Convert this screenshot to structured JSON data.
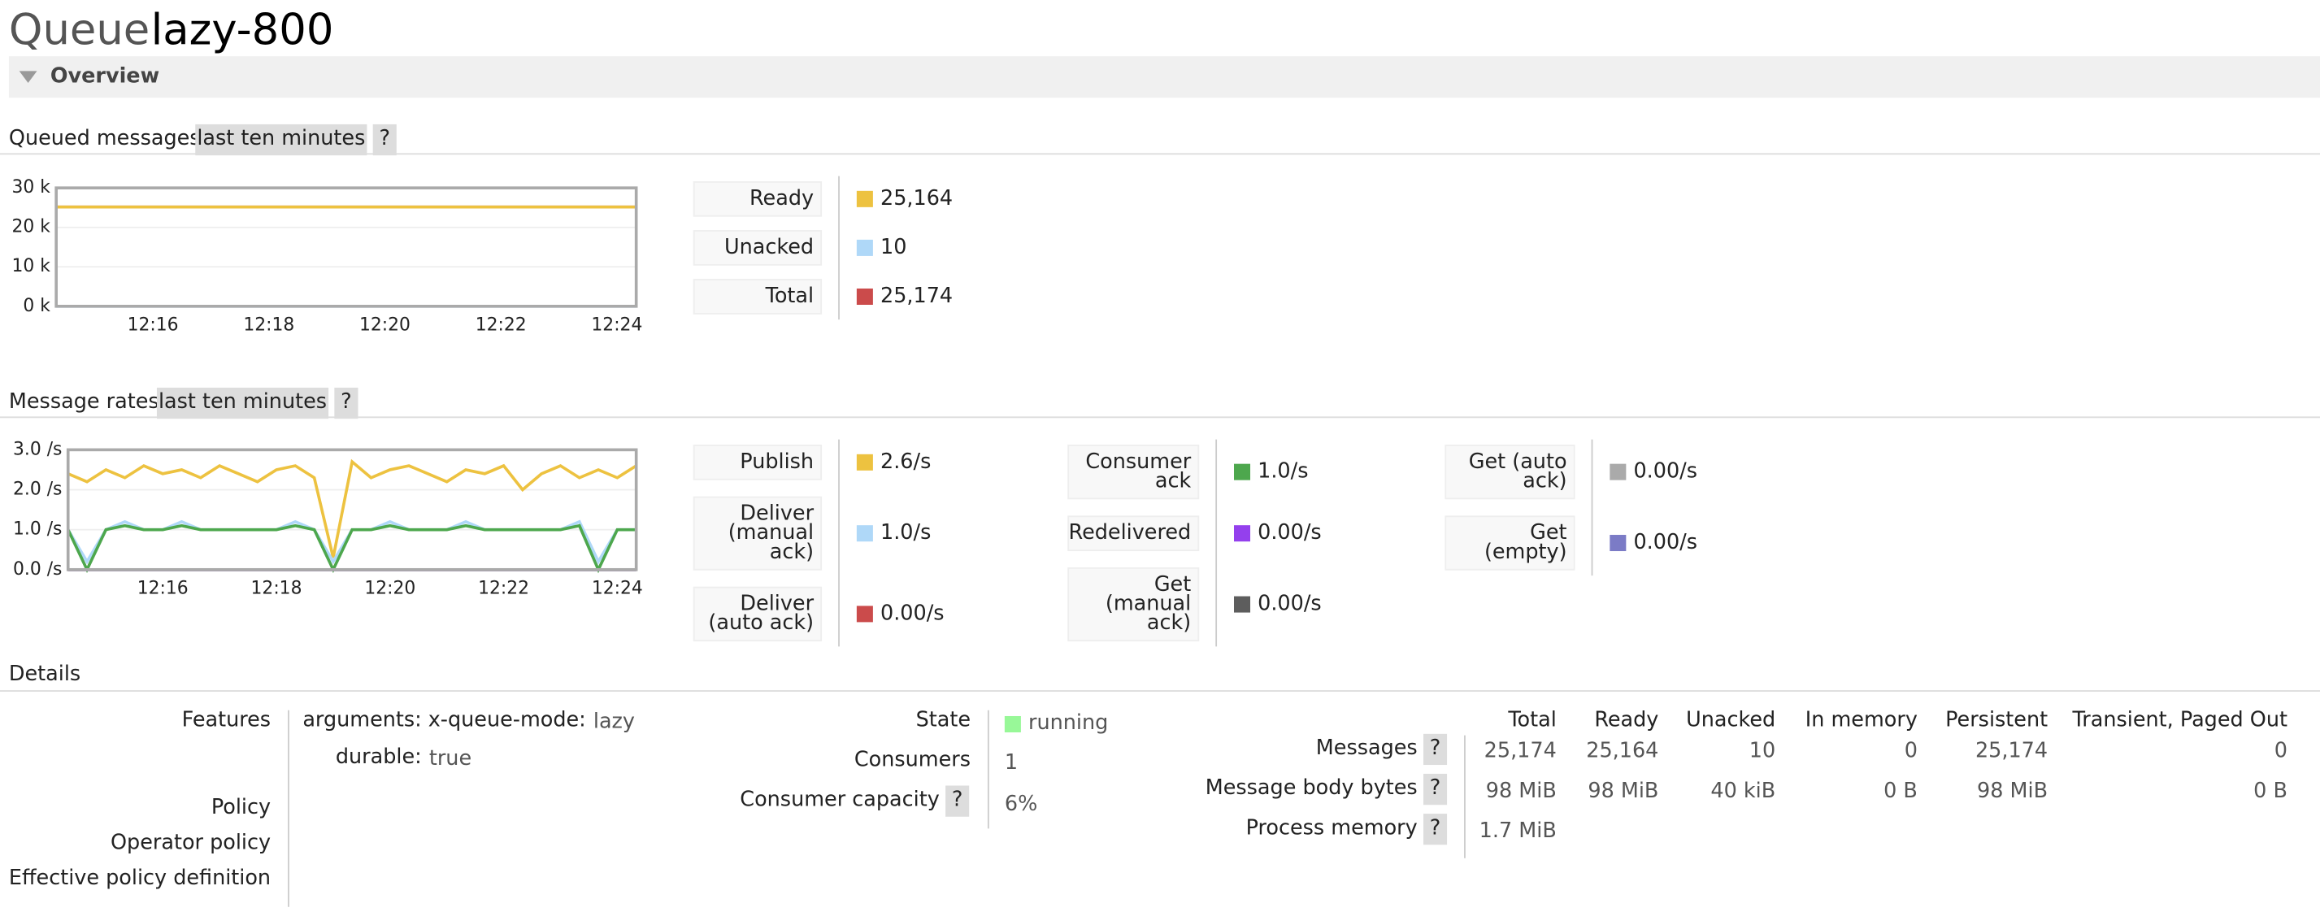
{
  "header": {
    "title_prefix": "Queue",
    "title_name": "lazy-800"
  },
  "overview": {
    "label": "Overview"
  },
  "queued_messages": {
    "label": "Queued messages",
    "range": "last ten minutes",
    "help": "?",
    "chart": {
      "type": "line",
      "x": [
        "12:14:20",
        "12:24:20"
      ],
      "xlim": [
        "12:14:20",
        "12:24:20"
      ],
      "xticks": [
        "12:16",
        "12:18",
        "12:20",
        "12:22",
        "12:24"
      ],
      "ylim": [
        0,
        30000
      ],
      "yticks": [
        {
          "value": 0,
          "label": "0 k"
        },
        {
          "value": 10000,
          "label": "10 k"
        },
        {
          "value": 20000,
          "label": "20 k"
        },
        {
          "value": 30000,
          "label": "30 k"
        }
      ]
    },
    "legend": [
      {
        "label": [
          "Ready"
        ],
        "color": "#edc240",
        "value": "25,164",
        "values": [
          25164,
          25164
        ]
      },
      {
        "label": [
          "Unacked"
        ],
        "color": "#afd8f8",
        "value": "10",
        "values": [
          10,
          10
        ]
      },
      {
        "label": [
          "Total"
        ],
        "color": "#cb4b4b",
        "value": "25,174",
        "values": [
          25174,
          25174
        ]
      }
    ]
  },
  "message_rates": {
    "label": "Message rates",
    "range": "last ten minutes",
    "help": "?",
    "chart": {
      "type": "line",
      "x": [
        "12:14:20",
        "12:14:40",
        "12:15:00",
        "12:15:20",
        "12:15:40",
        "12:16:00",
        "12:16:20",
        "12:16:40",
        "12:17:00",
        "12:17:20",
        "12:17:40",
        "12:18:00",
        "12:18:20",
        "12:18:40",
        "12:19:00",
        "12:19:20",
        "12:19:40",
        "12:20:00",
        "12:20:20",
        "12:20:40",
        "12:21:00",
        "12:21:20",
        "12:21:40",
        "12:22:00",
        "12:22:20",
        "12:22:40",
        "12:23:00",
        "12:23:20",
        "12:23:40",
        "12:24:00",
        "12:24:20"
      ],
      "xlim": [
        "12:14:20",
        "12:24:20"
      ],
      "xticks": [
        "12:16",
        "12:18",
        "12:20",
        "12:22",
        "12:24"
      ],
      "ylim": [
        0,
        3
      ],
      "yticks": [
        {
          "value": 0,
          "label": "0.0 /s"
        },
        {
          "value": 1,
          "label": "1.0 /s"
        },
        {
          "value": 2,
          "label": "2.0 /s"
        },
        {
          "value": 3,
          "label": "3.0 /s"
        }
      ]
    },
    "columns": [
      [
        {
          "label": [
            "Publish"
          ],
          "color": "#edc240",
          "value": "2.6/s",
          "values": [
            2.4,
            2.2,
            2.5,
            2.3,
            2.6,
            2.4,
            2.5,
            2.3,
            2.6,
            2.4,
            2.2,
            2.5,
            2.6,
            2.3,
            0.3,
            2.7,
            2.3,
            2.5,
            2.6,
            2.4,
            2.2,
            2.5,
            2.4,
            2.6,
            2.0,
            2.4,
            2.6,
            2.3,
            2.5,
            2.3,
            2.6
          ]
        },
        {
          "label": [
            "Deliver",
            "(manual",
            "ack)"
          ],
          "color": "#afd8f8",
          "value": "1.0/s",
          "values": [
            1,
            0.2,
            1,
            1.2,
            1,
            1,
            1.2,
            1,
            1,
            1,
            1,
            1,
            1.2,
            1,
            0.2,
            1,
            1,
            1.2,
            1,
            1,
            1,
            1.2,
            1,
            1,
            1,
            1,
            1,
            1.2,
            0.2,
            1,
            1
          ]
        },
        {
          "label": [
            "Deliver",
            "(auto ack)"
          ],
          "color": "#cb4b4b",
          "value": "0.00/s",
          "values": [
            0,
            0,
            0,
            0,
            0,
            0,
            0,
            0,
            0,
            0,
            0,
            0,
            0,
            0,
            0,
            0,
            0,
            0,
            0,
            0,
            0,
            0,
            0,
            0,
            0,
            0,
            0,
            0,
            0,
            0,
            0
          ]
        }
      ],
      [
        {
          "label": [
            "Consumer",
            "ack"
          ],
          "color": "#4da74d",
          "value": "1.0/s",
          "values": [
            1,
            0,
            1,
            1.1,
            1,
            1,
            1.1,
            1,
            1,
            1,
            1,
            1,
            1.1,
            1,
            0,
            1,
            1,
            1.1,
            1,
            1,
            1,
            1.1,
            1,
            1,
            1,
            1,
            1,
            1.1,
            0,
            1,
            1
          ]
        },
        {
          "label": [
            "Redelivered"
          ],
          "color": "#9440ed",
          "value": "0.00/s",
          "values": [
            0,
            0,
            0,
            0,
            0,
            0,
            0,
            0,
            0,
            0,
            0,
            0,
            0,
            0,
            0,
            0,
            0,
            0,
            0,
            0,
            0,
            0,
            0,
            0,
            0,
            0,
            0,
            0,
            0,
            0,
            0
          ]
        },
        {
          "label": [
            "Get",
            "(manual",
            "ack)"
          ],
          "color": "#5d5d5d",
          "value": "0.00/s",
          "values": [
            0,
            0,
            0,
            0,
            0,
            0,
            0,
            0,
            0,
            0,
            0,
            0,
            0,
            0,
            0,
            0,
            0,
            0,
            0,
            0,
            0,
            0,
            0,
            0,
            0,
            0,
            0,
            0,
            0,
            0,
            0
          ]
        }
      ],
      [
        {
          "label": [
            "Get (auto",
            "ack)"
          ],
          "color": "#aaaaaa",
          "value": "0.00/s",
          "values": [
            0,
            0,
            0,
            0,
            0,
            0,
            0,
            0,
            0,
            0,
            0,
            0,
            0,
            0,
            0,
            0,
            0,
            0,
            0,
            0,
            0,
            0,
            0,
            0,
            0,
            0,
            0,
            0,
            0,
            0,
            0
          ]
        },
        {
          "label": [
            "Get",
            "(empty)"
          ],
          "color": "#7b7bc6",
          "value": "0.00/s",
          "values": [
            0,
            0,
            0,
            0,
            0,
            0,
            0,
            0,
            0,
            0,
            0,
            0,
            0,
            0,
            0,
            0,
            0,
            0,
            0,
            0,
            0,
            0,
            0,
            0,
            0,
            0,
            0,
            0,
            0,
            0,
            0
          ]
        }
      ]
    ]
  },
  "details": {
    "label": "Details",
    "features": {
      "label": "Features",
      "arguments_label": "arguments:",
      "argument_key": "x-queue-mode:",
      "argument_value": "lazy",
      "durable_label": "durable:",
      "durable_value": "true"
    },
    "policy": "Policy",
    "operator_policy": "Operator policy",
    "effective_policy": "Effective policy definition",
    "state": {
      "label": "State",
      "value": "running",
      "color": "#98f898"
    },
    "consumers": {
      "label": "Consumers",
      "value": "1"
    },
    "consumer_capacity": {
      "label": "Consumer capacity",
      "help": "?",
      "value": "6%"
    },
    "messages": {
      "headers": [
        "Total",
        "Ready",
        "Unacked",
        "In memory",
        "Persistent",
        "Transient, Paged Out"
      ],
      "rows": [
        {
          "label": "Messages",
          "help": "?",
          "cells": [
            "25,174",
            "25,164",
            "10",
            "0",
            "25,174",
            "0"
          ]
        },
        {
          "label": "Message body bytes",
          "help": "?",
          "cells": [
            "98 MiB",
            "98 MiB",
            "40 kiB",
            "0 B",
            "98 MiB",
            "0 B"
          ]
        },
        {
          "label": "Process memory",
          "help": "?",
          "cells": [
            "1.7 MiB"
          ]
        }
      ]
    }
  }
}
